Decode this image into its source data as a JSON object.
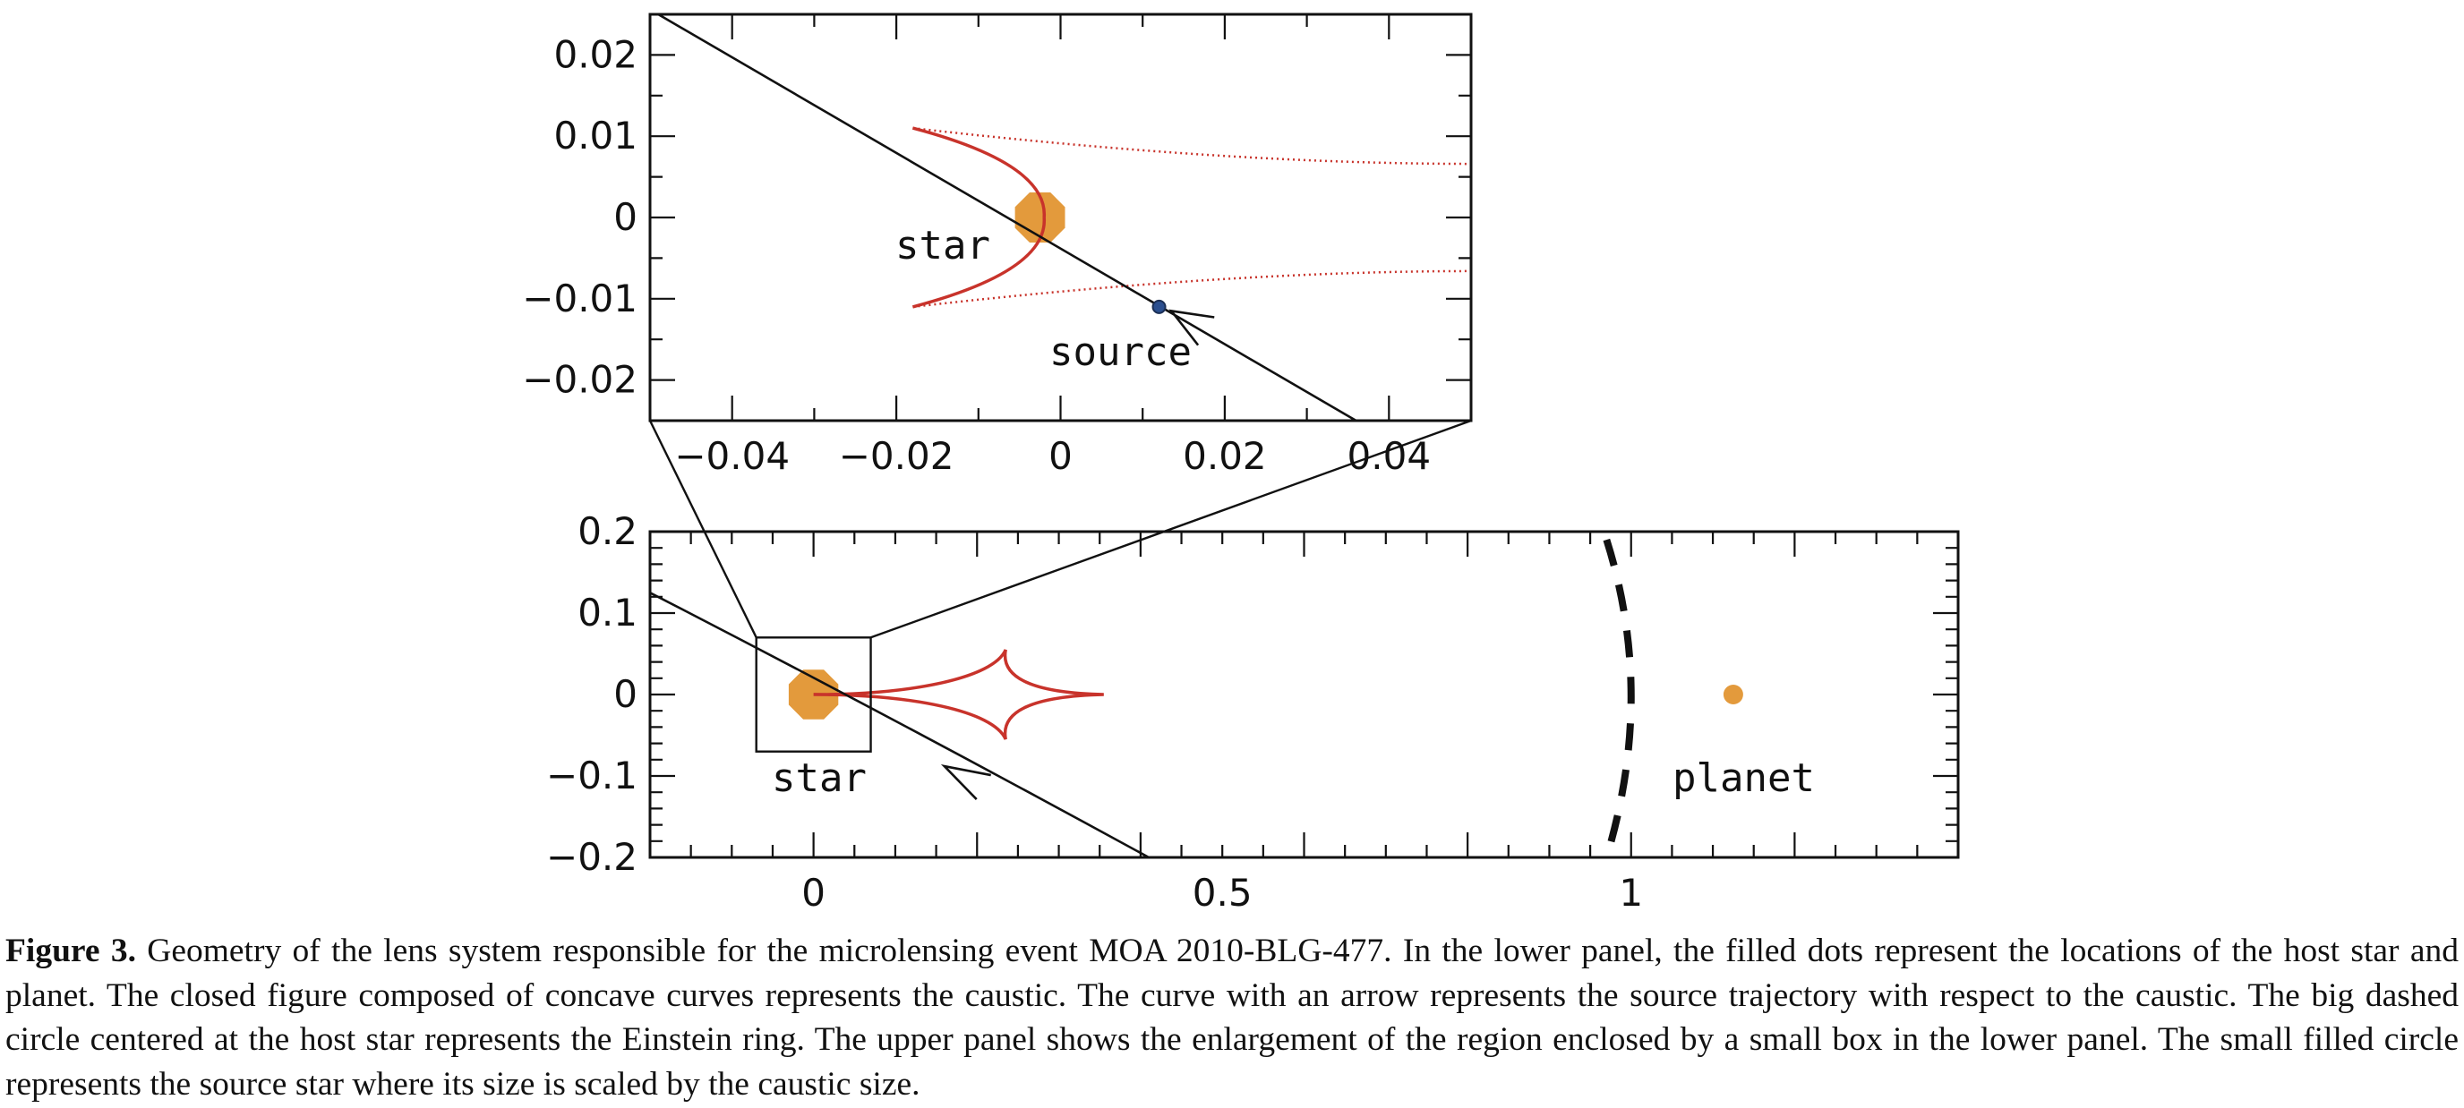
{
  "figure": {
    "caption_label": "Figure 3.",
    "caption_text": " Geometry of the lens system responsible for the microlensing event MOA 2010-BLG-477. In the lower panel, the filled dots represent the locations of the host star and planet. The closed figure composed of concave curves represents the caustic. The curve with an arrow represents the source trajectory with respect to the caustic. The big dashed circle centered at the host star represents the Einstein ring. The upper panel shows the enlargement of the region enclosed by a small box in the lower panel. The small filled circle represents the source star where its size is scaled by the caustic size."
  },
  "colors": {
    "caustic": "#c8332b",
    "lens": "#e39a3c",
    "source": "#2b4f8f",
    "axes": "#111111"
  },
  "chart_data": [
    {
      "type": "scatter",
      "panel": "upper (enlargement)",
      "xlim": [
        -0.05,
        0.05
      ],
      "ylim": [
        -0.025,
        0.025
      ],
      "x_ticks": [
        -0.04,
        -0.02,
        0,
        0.02,
        0.04
      ],
      "x_tick_labels": [
        "−0.04",
        "−0.02",
        "0",
        "0.02",
        "0.04"
      ],
      "y_ticks": [
        0.02,
        0.01,
        0,
        -0.01,
        -0.02
      ],
      "y_tick_labels": [
        "0.02",
        "0.01",
        "0",
        "−0.01",
        "−0.02"
      ],
      "annotations": [
        "star",
        "source"
      ],
      "objects": {
        "star": {
          "x": -0.0025,
          "y": 0.0,
          "radius": 0.0033
        },
        "source": {
          "x": 0.012,
          "y": -0.011
        },
        "trajectory": {
          "x": [
            -0.049,
            0.036
          ],
          "y": [
            0.025,
            -0.025
          ]
        },
        "caustic_tip": {
          "x": -0.002,
          "y": 0.0
        },
        "caustic_ends": {
          "x": -0.018,
          "y": [
            0.011,
            -0.011
          ]
        },
        "caustic_right_edge": {
          "x": 0.05,
          "y": [
            0.0066,
            -0.0066
          ]
        }
      }
    },
    {
      "type": "scatter",
      "panel": "lower",
      "xlim": [
        -0.2,
        1.4
      ],
      "ylim": [
        -0.2,
        0.2
      ],
      "x_ticks": [
        0,
        0.5,
        1
      ],
      "x_tick_labels": [
        "0",
        "0.5",
        "1"
      ],
      "y_ticks": [
        0.2,
        0.1,
        0,
        -0.1,
        -0.2
      ],
      "y_tick_labels": [
        "0.2",
        "0.1",
        "0",
        "−0.1",
        "−0.2"
      ],
      "annotations": [
        "star",
        "planet"
      ],
      "objects": {
        "star": {
          "x": 0.0,
          "y": 0.0
        },
        "planet": {
          "x": 1.125,
          "y": 0.0
        },
        "caustic_cusps": {
          "x": [
            0.0,
            0.235,
            0.355,
            0.235
          ],
          "y": [
            0.0,
            0.055,
            0.0,
            -0.055
          ]
        },
        "zoom_box": {
          "x": [
            -0.07,
            0.07
          ],
          "y": [
            -0.07,
            0.07
          ]
        },
        "trajectory": {
          "x": [
            -0.2,
            0.41
          ],
          "y": [
            0.125,
            -0.2
          ]
        },
        "einstein_ring_segment": {
          "x": [
            0.97,
            1.0,
            0.97
          ],
          "y": [
            0.19,
            0.0,
            -0.2
          ]
        }
      }
    }
  ]
}
